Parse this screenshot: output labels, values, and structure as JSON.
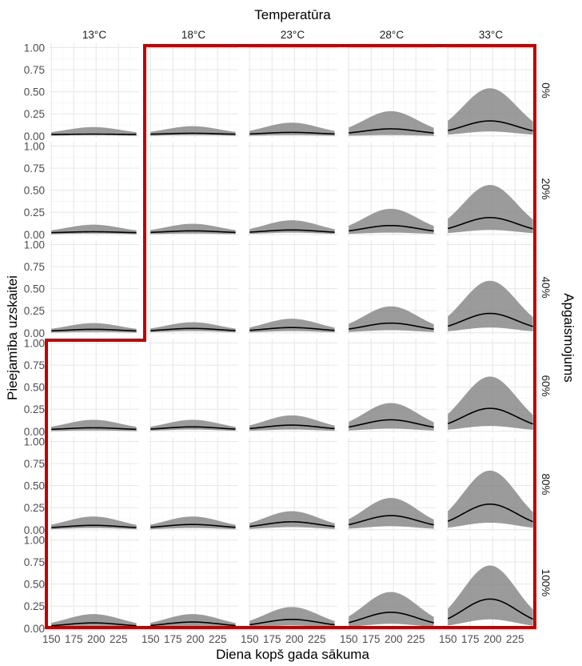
{
  "chart_data": {
    "type": "area",
    "title": "",
    "column_strip_title": "Temperatūra",
    "row_strip_title": "Apgaismojums",
    "xlabel": "Diena kopš gada sākuma",
    "ylabel": "Pieejamība uzskaitei",
    "columns": [
      "13°C",
      "18°C",
      "23°C",
      "28°C",
      "33°C"
    ],
    "rows": [
      "0%",
      "20%",
      "40%",
      "60%",
      "80%",
      "100%"
    ],
    "xlim": [
      148,
      248
    ],
    "ylim": [
      -0.02,
      1.05
    ],
    "x_ticks": [
      150,
      175,
      200,
      225
    ],
    "y_ticks": [
      "0.00",
      "0.25",
      "0.50",
      "0.75",
      "1.00"
    ],
    "peak_day": 197,
    "start_day": 150,
    "end_day": 245,
    "grid": true,
    "series": [
      {
        "name": "mean",
        "style": "line",
        "color": "#000000"
      },
      {
        "name": "interval",
        "style": "band",
        "color": "#7f7f7f"
      }
    ],
    "curve_peaks": [
      [
        {
          "mean": 0.02,
          "lower": 0.01,
          "upper": 0.1
        },
        {
          "mean": 0.03,
          "lower": 0.01,
          "upper": 0.11
        },
        {
          "mean": 0.04,
          "lower": 0.01,
          "upper": 0.15
        },
        {
          "mean": 0.08,
          "lower": 0.01,
          "upper": 0.28
        },
        {
          "mean": 0.17,
          "lower": 0.05,
          "upper": 0.54
        }
      ],
      [
        {
          "mean": 0.03,
          "lower": 0.01,
          "upper": 0.11
        },
        {
          "mean": 0.04,
          "lower": 0.01,
          "upper": 0.12
        },
        {
          "mean": 0.05,
          "lower": 0.02,
          "upper": 0.16
        },
        {
          "mean": 0.1,
          "lower": 0.02,
          "upper": 0.29
        },
        {
          "mean": 0.19,
          "lower": 0.05,
          "upper": 0.56
        }
      ],
      [
        {
          "mean": 0.04,
          "lower": 0.01,
          "upper": 0.11
        },
        {
          "mean": 0.05,
          "lower": 0.02,
          "upper": 0.12
        },
        {
          "mean": 0.06,
          "lower": 0.02,
          "upper": 0.16
        },
        {
          "mean": 0.11,
          "lower": 0.03,
          "upper": 0.3
        },
        {
          "mean": 0.22,
          "lower": 0.06,
          "upper": 0.59
        }
      ],
      [
        {
          "mean": 0.04,
          "lower": 0.01,
          "upper": 0.13
        },
        {
          "mean": 0.05,
          "lower": 0.02,
          "upper": 0.13
        },
        {
          "mean": 0.07,
          "lower": 0.02,
          "upper": 0.18
        },
        {
          "mean": 0.13,
          "lower": 0.03,
          "upper": 0.32
        },
        {
          "mean": 0.26,
          "lower": 0.06,
          "upper": 0.62
        }
      ],
      [
        {
          "mean": 0.05,
          "lower": 0.02,
          "upper": 0.15
        },
        {
          "mean": 0.06,
          "lower": 0.02,
          "upper": 0.15
        },
        {
          "mean": 0.09,
          "lower": 0.03,
          "upper": 0.21
        },
        {
          "mean": 0.16,
          "lower": 0.04,
          "upper": 0.36
        },
        {
          "mean": 0.29,
          "lower": 0.08,
          "upper": 0.67
        }
      ],
      [
        {
          "mean": 0.06,
          "lower": 0.02,
          "upper": 0.16
        },
        {
          "mean": 0.07,
          "lower": 0.02,
          "upper": 0.16
        },
        {
          "mean": 0.1,
          "lower": 0.03,
          "upper": 0.24
        },
        {
          "mean": 0.18,
          "lower": 0.05,
          "upper": 0.41
        },
        {
          "mean": 0.33,
          "lower": 0.1,
          "upper": 0.71
        }
      ]
    ],
    "highlight_color": "#c00000"
  }
}
